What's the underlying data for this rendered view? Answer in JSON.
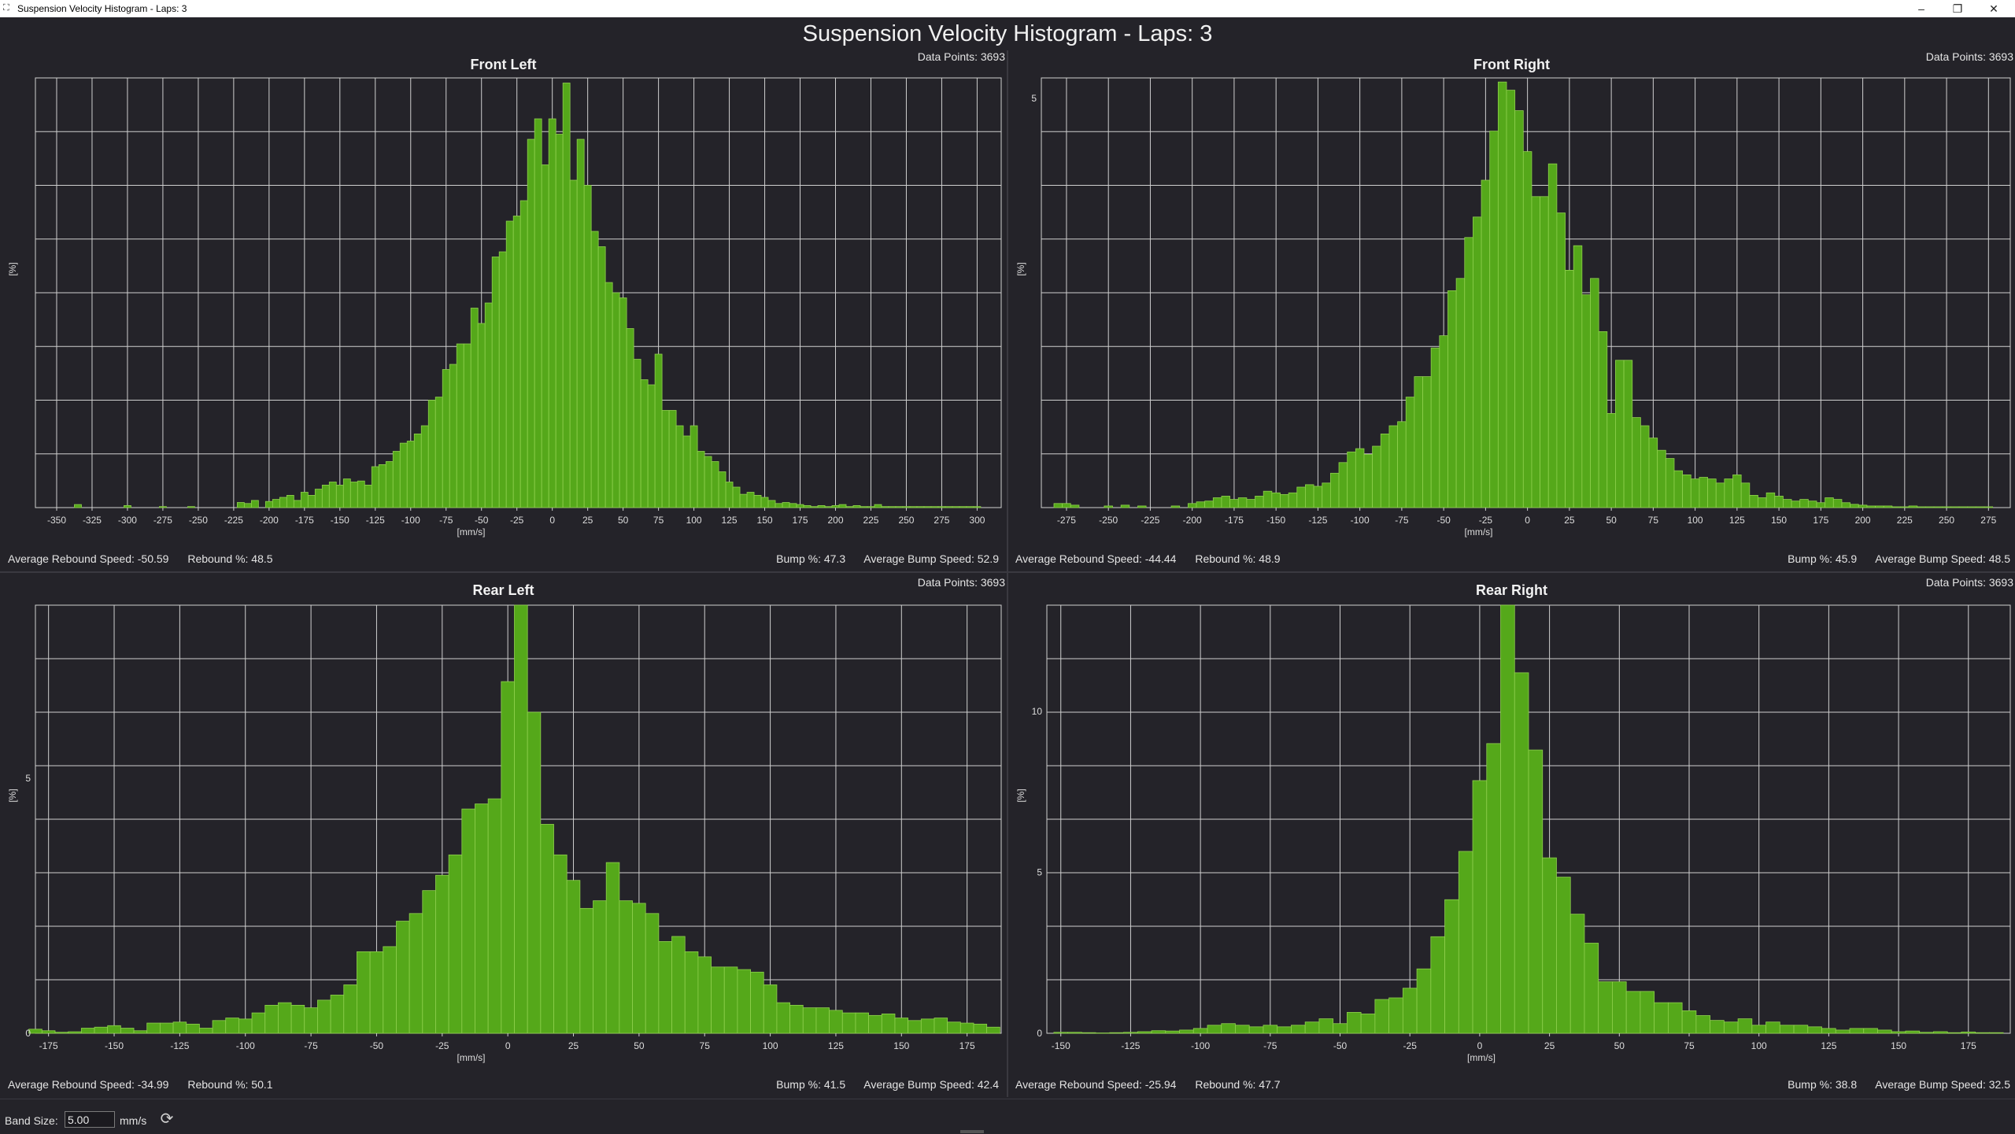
{
  "window": {
    "title": "Suspension Velocity Histogram - Laps: 3",
    "minimize": "–",
    "restore": "❐",
    "close": "✕"
  },
  "main_title": "Suspension Velocity Histogram - Laps: 3",
  "footer": {
    "band_size_label": "Band Size:",
    "band_size_value": "5.00",
    "units": "mm/s",
    "refresh_icon": "refresh-icon"
  },
  "colors": {
    "bar_fill": "#55a81a",
    "bar_edge": "#8fd04e",
    "grid": "#d8d8d8",
    "background": "#242329"
  },
  "panels": [
    {
      "key": "fl",
      "title": "Front Left",
      "data_points_label": "Data Points: 3693",
      "rebound_speed": "Average Rebound Speed: -50.59",
      "rebound_pct": "Rebound %: 48.5",
      "bump_pct": "Bump %: 47.3",
      "bump_speed": "Average Bump Speed: 52.9"
    },
    {
      "key": "fr",
      "title": "Front Right",
      "data_points_label": "Data Points: 3693",
      "rebound_speed": "Average Rebound Speed: -44.44",
      "rebound_pct": "Rebound %: 48.9",
      "bump_pct": "Bump %: 45.9",
      "bump_speed": "Average Bump Speed: 48.5"
    },
    {
      "key": "rl",
      "title": "Rear Left",
      "data_points_label": "Data Points: 3693",
      "rebound_speed": "Average Rebound Speed: -34.99",
      "rebound_pct": "Rebound %: 50.1",
      "bump_pct": "Bump %: 41.5",
      "bump_speed": "Average Bump Speed: 42.4"
    },
    {
      "key": "rr",
      "title": "Rear Right",
      "data_points_label": "Data Points: 3693",
      "rebound_speed": "Average Rebound Speed: -25.94",
      "rebound_pct": "Rebound %: 47.7",
      "bump_pct": "Bump %: 38.8",
      "bump_speed": "Average Bump Speed: 32.5"
    }
  ],
  "chart_data": [
    {
      "type": "bar",
      "title": "Front Left",
      "xlabel": "[mm/s]",
      "ylabel": "[%]",
      "xlim": [
        -365,
        317
      ],
      "ylim": [
        0,
        4.2
      ],
      "band": 5,
      "x_ticks": [
        -350,
        -325,
        -300,
        -275,
        -250,
        -225,
        -200,
        -175,
        -150,
        -125,
        -100,
        -75,
        -50,
        -25,
        0,
        25,
        50,
        75,
        100,
        125,
        150,
        175,
        200,
        225,
        250,
        275,
        300
      ],
      "y_ticks": [],
      "grid": true,
      "x": [
        -335,
        -300,
        -275,
        -255,
        -220,
        -215,
        -210,
        -200,
        -195,
        -190,
        -185,
        -180,
        -175,
        -170,
        -165,
        -160,
        -155,
        -150,
        -145,
        -140,
        -135,
        -130,
        -125,
        -120,
        -115,
        -110,
        -105,
        -100,
        -95,
        -90,
        -85,
        -80,
        -75,
        -70,
        -65,
        -60,
        -55,
        -50,
        -45,
        -40,
        -35,
        -30,
        -25,
        -20,
        -15,
        -10,
        -5,
        0,
        5,
        10,
        15,
        20,
        25,
        30,
        35,
        40,
        45,
        50,
        55,
        60,
        65,
        70,
        75,
        80,
        85,
        90,
        95,
        100,
        105,
        110,
        115,
        120,
        125,
        130,
        135,
        140,
        145,
        150,
        155,
        160,
        165,
        170,
        175,
        180,
        185,
        190,
        195,
        200,
        205,
        210,
        215,
        220,
        225,
        230,
        235,
        240,
        245,
        250,
        255,
        260,
        265,
        270,
        275,
        280,
        285,
        290,
        295,
        300
      ],
      "values": [
        0.03,
        0.02,
        0.01,
        0.01,
        0.05,
        0.04,
        0.07,
        0.06,
        0.08,
        0.1,
        0.12,
        0.07,
        0.15,
        0.12,
        0.18,
        0.22,
        0.25,
        0.22,
        0.28,
        0.25,
        0.26,
        0.22,
        0.4,
        0.42,
        0.45,
        0.55,
        0.63,
        0.65,
        0.72,
        0.8,
        1.05,
        1.08,
        1.35,
        1.4,
        1.6,
        1.6,
        1.95,
        1.8,
        2.0,
        2.45,
        2.5,
        2.8,
        2.85,
        3.0,
        3.6,
        3.8,
        3.35,
        3.8,
        3.65,
        4.15,
        3.2,
        3.6,
        3.15,
        2.7,
        2.55,
        2.2,
        2.1,
        2.05,
        1.75,
        1.45,
        1.25,
        1.2,
        1.5,
        0.95,
        0.95,
        0.8,
        0.7,
        0.8,
        0.55,
        0.5,
        0.45,
        0.35,
        0.25,
        0.2,
        0.13,
        0.15,
        0.12,
        0.1,
        0.07,
        0.04,
        0.05,
        0.04,
        0.03,
        0.02,
        0.01,
        0.02,
        0.01,
        0.02,
        0.03,
        0.01,
        0.02,
        0.01,
        0.01,
        0.03,
        0.01,
        0.01,
        0.01,
        0.01,
        0.01,
        0.01,
        0.01,
        0.01,
        0.01,
        0.01,
        0.01,
        0.01,
        0.01,
        0.01
      ]
    },
    {
      "type": "bar",
      "title": "Front Right",
      "xlabel": "[mm/s]",
      "ylabel": "[%]",
      "xlim": [
        -290,
        288
      ],
      "ylim": [
        0,
        5.25
      ],
      "band": 5,
      "x_ticks": [
        -275,
        -250,
        -225,
        -200,
        -175,
        -150,
        -125,
        -100,
        -75,
        -50,
        -25,
        0,
        25,
        50,
        75,
        100,
        125,
        150,
        175,
        200,
        225,
        250,
        275
      ],
      "y_ticks": [
        5
      ],
      "grid": true,
      "x": [
        -280,
        -275,
        -270,
        -250,
        -240,
        -230,
        -210,
        -200,
        -195,
        -190,
        -185,
        -180,
        -175,
        -170,
        -165,
        -160,
        -155,
        -150,
        -145,
        -140,
        -135,
        -130,
        -125,
        -120,
        -115,
        -110,
        -105,
        -100,
        -95,
        -90,
        -85,
        -80,
        -75,
        -70,
        -65,
        -60,
        -55,
        -50,
        -45,
        -40,
        -35,
        -30,
        -25,
        -20,
        -15,
        -10,
        -5,
        0,
        5,
        10,
        15,
        20,
        25,
        30,
        35,
        40,
        45,
        50,
        55,
        60,
        65,
        70,
        75,
        80,
        85,
        90,
        95,
        100,
        105,
        110,
        115,
        120,
        125,
        130,
        135,
        140,
        145,
        150,
        155,
        160,
        165,
        170,
        175,
        180,
        185,
        190,
        195,
        200,
        205,
        210,
        215,
        220,
        225,
        230,
        235,
        240,
        245,
        250,
        255,
        260,
        265,
        270,
        275
      ],
      "values": [
        0.05,
        0.05,
        0.03,
        0.02,
        0.03,
        0.02,
        0.02,
        0.05,
        0.07,
        0.08,
        0.12,
        0.14,
        0.1,
        0.12,
        0.1,
        0.14,
        0.2,
        0.18,
        0.16,
        0.18,
        0.25,
        0.28,
        0.26,
        0.3,
        0.42,
        0.55,
        0.68,
        0.72,
        0.65,
        0.75,
        0.9,
        1.0,
        1.05,
        1.35,
        1.6,
        1.6,
        1.95,
        2.1,
        2.65,
        2.8,
        3.3,
        3.55,
        4.0,
        4.6,
        5.2,
        5.1,
        4.85,
        4.35,
        3.8,
        3.8,
        4.2,
        3.6,
        2.9,
        3.2,
        2.6,
        2.8,
        2.15,
        1.15,
        1.8,
        1.8,
        1.1,
        1.0,
        0.85,
        0.7,
        0.6,
        0.45,
        0.4,
        0.35,
        0.37,
        0.35,
        0.3,
        0.35,
        0.4,
        0.3,
        0.15,
        0.12,
        0.18,
        0.14,
        0.1,
        0.08,
        0.1,
        0.08,
        0.06,
        0.12,
        0.1,
        0.06,
        0.04,
        0.03,
        0.02,
        0.02,
        0.02,
        0.01,
        0.01,
        0.02,
        0.01,
        0.01,
        0.01,
        0.01,
        0.01,
        0.01,
        0.01,
        0.01,
        0.01
      ],
      "x_sparse_note": ""
    },
    {
      "type": "bar",
      "title": "Rear Left",
      "xlabel": "[mm/s]",
      "ylabel": "[%]",
      "xlim": [
        -180,
        188
      ],
      "ylim": [
        0,
        8.4
      ],
      "band": 5,
      "x_ticks": [
        -175,
        -150,
        -125,
        -100,
        -75,
        -50,
        -25,
        0,
        25,
        50,
        75,
        100,
        125,
        150,
        175
      ],
      "y_ticks": [
        0,
        5
      ],
      "grid": true,
      "x": [
        -180,
        -175,
        -170,
        -165,
        -160,
        -155,
        -150,
        -145,
        -140,
        -135,
        -130,
        -125,
        -120,
        -115,
        -110,
        -105,
        -100,
        -95,
        -90,
        -85,
        -80,
        -75,
        -70,
        -65,
        -60,
        -55,
        -50,
        -45,
        -40,
        -35,
        -30,
        -25,
        -20,
        -15,
        -10,
        -5,
        0,
        5,
        10,
        15,
        20,
        25,
        30,
        35,
        40,
        45,
        50,
        55,
        60,
        65,
        70,
        75,
        80,
        85,
        90,
        95,
        100,
        105,
        110,
        115,
        120,
        125,
        130,
        135,
        140,
        145,
        150,
        155,
        160,
        165,
        170,
        175,
        180,
        185
      ],
      "values": [
        0.08,
        0.05,
        0.02,
        0.03,
        0.1,
        0.12,
        0.15,
        0.1,
        0.05,
        0.2,
        0.2,
        0.22,
        0.18,
        0.1,
        0.25,
        0.3,
        0.28,
        0.4,
        0.55,
        0.6,
        0.55,
        0.5,
        0.65,
        0.75,
        0.95,
        1.6,
        1.6,
        1.7,
        2.2,
        2.35,
        2.8,
        3.1,
        3.5,
        4.4,
        4.5,
        4.6,
        6.9,
        8.4,
        6.3,
        4.1,
        3.5,
        3.0,
        2.45,
        2.6,
        3.35,
        2.6,
        2.55,
        2.35,
        1.8,
        1.9,
        1.6,
        1.5,
        1.3,
        1.3,
        1.25,
        1.2,
        0.95,
        0.6,
        0.55,
        0.5,
        0.5,
        0.45,
        0.4,
        0.4,
        0.35,
        0.38,
        0.3,
        0.25,
        0.28,
        0.3,
        0.22,
        0.2,
        0.18,
        0.12
      ]
    },
    {
      "type": "bar",
      "title": "Rear Right",
      "xlabel": "[mm/s]",
      "ylabel": "[%]",
      "xlim": [
        -155,
        190
      ],
      "ylim": [
        0,
        13.3
      ],
      "band": 5,
      "x_ticks": [
        -150,
        -125,
        -100,
        -75,
        -50,
        -25,
        0,
        25,
        50,
        75,
        100,
        125,
        150,
        175
      ],
      "y_ticks": [
        0,
        5,
        10
      ],
      "grid": true,
      "x": [
        -150,
        -145,
        -140,
        -135,
        -130,
        -125,
        -120,
        -115,
        -110,
        -105,
        -100,
        -95,
        -90,
        -85,
        -80,
        -75,
        -70,
        -65,
        -60,
        -55,
        -50,
        -45,
        -40,
        -35,
        -30,
        -25,
        -20,
        -15,
        -10,
        -5,
        0,
        5,
        10,
        15,
        20,
        25,
        30,
        35,
        40,
        45,
        50,
        55,
        60,
        65,
        70,
        75,
        80,
        85,
        90,
        95,
        100,
        105,
        110,
        115,
        120,
        125,
        130,
        135,
        140,
        145,
        150,
        155,
        160,
        165,
        170,
        175,
        180,
        185
      ],
      "values": [
        0.03,
        0.03,
        0.02,
        0.01,
        0.02,
        0.03,
        0.05,
        0.08,
        0.07,
        0.1,
        0.15,
        0.25,
        0.3,
        0.25,
        0.2,
        0.25,
        0.2,
        0.25,
        0.35,
        0.45,
        0.3,
        0.65,
        0.6,
        1.05,
        1.1,
        1.4,
        2.0,
        3.0,
        4.15,
        5.65,
        7.85,
        9.0,
        13.3,
        11.2,
        8.8,
        5.45,
        4.85,
        3.7,
        2.8,
        1.6,
        1.6,
        1.3,
        1.3,
        0.95,
        0.95,
        0.7,
        0.55,
        0.4,
        0.35,
        0.45,
        0.25,
        0.35,
        0.25,
        0.25,
        0.2,
        0.15,
        0.1,
        0.15,
        0.15,
        0.1,
        0.05,
        0.07,
        0.03,
        0.05,
        0.02,
        0.04,
        0.02,
        0.02
      ]
    }
  ]
}
